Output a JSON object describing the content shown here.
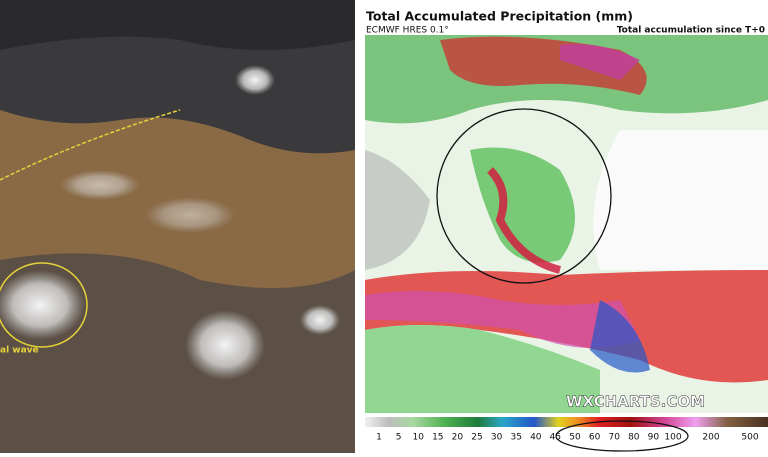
{
  "left_panel": {
    "annotation": "al wave"
  },
  "right_panel": {
    "title": "Total Accumulated Precipitation (mm)",
    "model": "ECMWF HRES 0.1°",
    "subtitle": "Total accumulation since T+0",
    "watermark": "WXCHARTS.COM",
    "legend": {
      "ticks": [
        1,
        5,
        10,
        15,
        20,
        25,
        30,
        35,
        40,
        45,
        50,
        60,
        70,
        80,
        90,
        100,
        200,
        500
      ]
    }
  }
}
